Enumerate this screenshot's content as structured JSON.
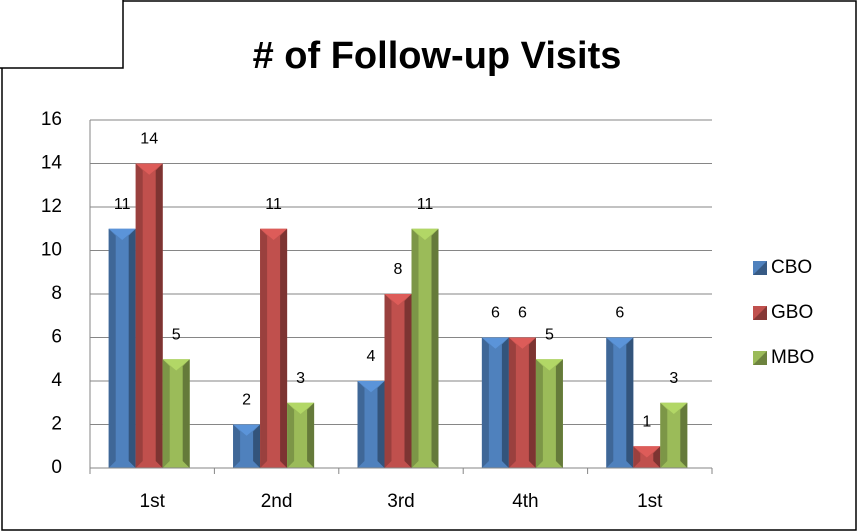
{
  "chart_data": {
    "type": "bar",
    "title": "# of Follow-up Visits",
    "categories": [
      "1st",
      "2nd",
      "3rd",
      "4th",
      "1st"
    ],
    "series": [
      {
        "name": "CBO",
        "color": "#4f81bd",
        "values": [
          11,
          2,
          4,
          6,
          6
        ]
      },
      {
        "name": "GBO",
        "color": "#c0504d",
        "values": [
          14,
          11,
          8,
          6,
          1
        ]
      },
      {
        "name": "MBO",
        "color": "#9bbb59",
        "values": [
          5,
          3,
          11,
          5,
          3
        ]
      }
    ],
    "ylim": [
      0,
      16
    ],
    "yticks": [
      0,
      2,
      4,
      6,
      8,
      10,
      12,
      14,
      16
    ],
    "grid": true,
    "legend": "right"
  }
}
